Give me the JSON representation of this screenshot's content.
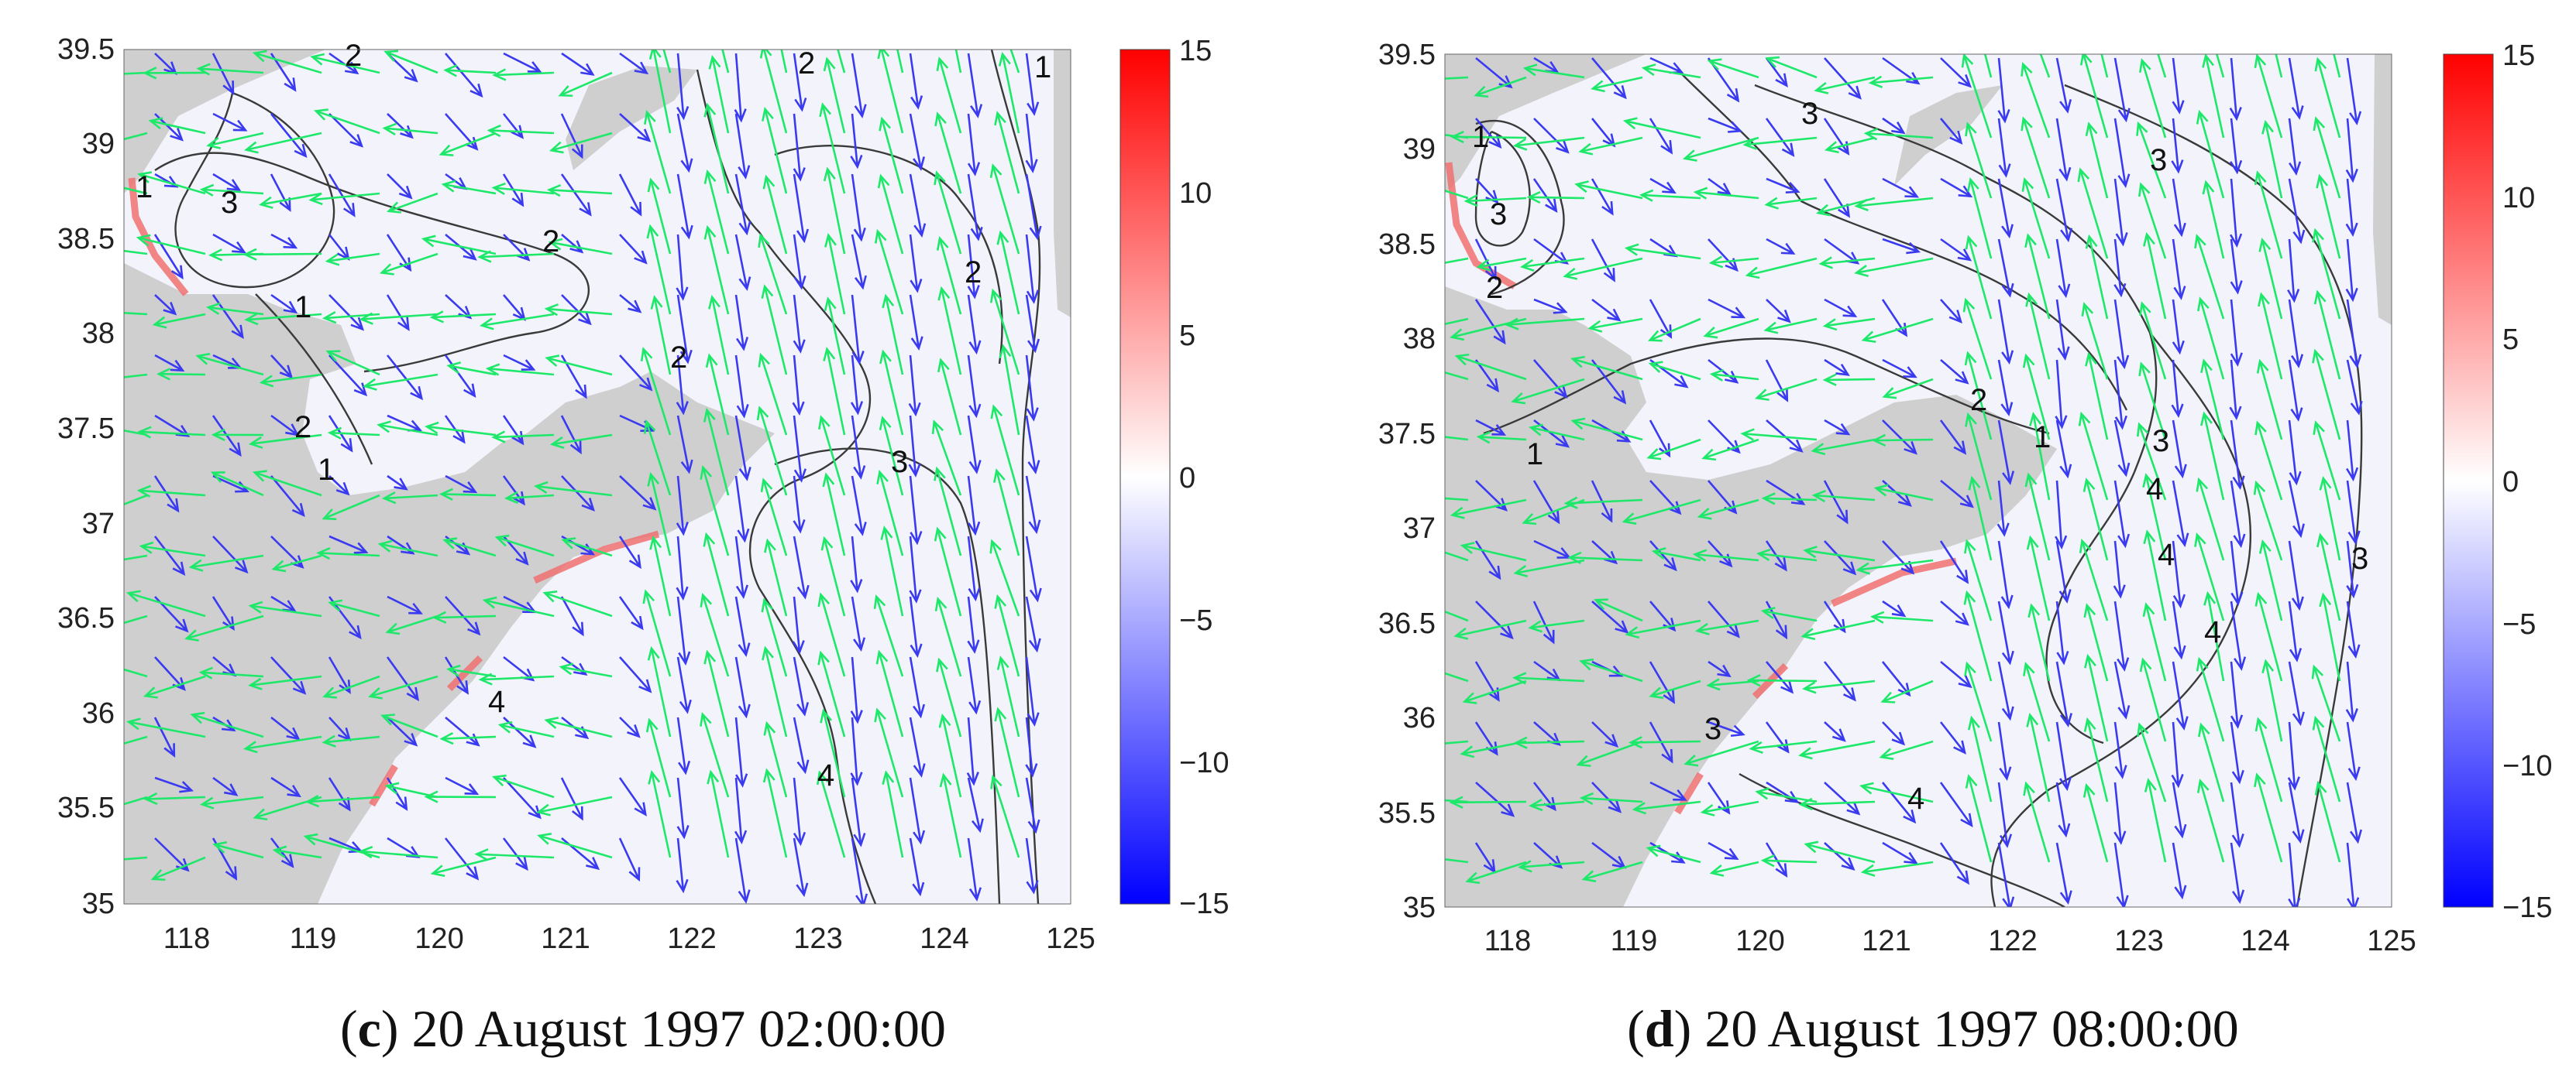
{
  "panels": [
    {
      "id": "c",
      "letter": "c",
      "caption_text": "20 August 1997 02:00:00",
      "x_ticks": [
        "118",
        "119",
        "120",
        "121",
        "122",
        "123",
        "124",
        "125"
      ],
      "y_ticks": [
        "39.5",
        "39",
        "38.5",
        "38",
        "37.5",
        "37",
        "36.5",
        "36",
        "35.5",
        "35"
      ],
      "colorbar_ticks": [
        "15",
        "10",
        "5",
        "0",
        "−5",
        "−10",
        "−15"
      ],
      "contour_labels": [
        "2",
        "1",
        "3",
        "1",
        "2",
        "2",
        "2",
        "2",
        "1",
        "3",
        "4",
        "2",
        "4",
        "1"
      ]
    },
    {
      "id": "d",
      "letter": "d",
      "caption_text": "20 August 1997 08:00:00",
      "x_ticks": [
        "118",
        "119",
        "120",
        "121",
        "122",
        "123",
        "124",
        "125"
      ],
      "y_ticks": [
        "39.5",
        "39",
        "38.5",
        "38",
        "37.5",
        "37",
        "36.5",
        "36",
        "35.5",
        "35"
      ],
      "colorbar_ticks": [
        "15",
        "10",
        "5",
        "0",
        "−5",
        "−10",
        "−15"
      ],
      "contour_labels": [
        "1",
        "3",
        "3",
        "2",
        "3",
        "1",
        "2",
        "1",
        "3",
        "4",
        "4",
        "4",
        "3",
        "4",
        "3"
      ]
    }
  ],
  "map": {
    "x_range": [
      117.5,
      125
    ],
    "y_range": [
      35,
      39.5
    ],
    "colorbar_range": [
      -15,
      15
    ],
    "land_color": "#cfcfcf",
    "water_color": "#f3f4fb",
    "contour_color": "#3a3a3a",
    "arrow_colors": {
      "green": "#1ee86a",
      "blue": "#3a3af0"
    }
  }
}
